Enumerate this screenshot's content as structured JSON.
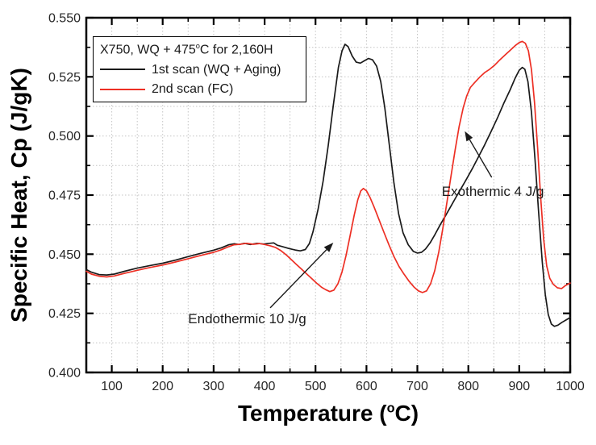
{
  "figure": {
    "x_title_pre": "Temperature (",
    "x_title_sup": "o",
    "x_title_post": "C)",
    "y_title": "Specific Heat, Cp (J/gK)"
  },
  "legend": {
    "title_pre": "X750, WQ + 475",
    "title_sup": "o",
    "title_post": "C for 2,160H"
  },
  "chart_data": {
    "type": "line",
    "title": "X750, WQ + 475°C for 2,160H",
    "xlabel": "Temperature (°C)",
    "ylabel": "Specific Heat, Cp (J/gK)",
    "xlim": [
      50,
      1000
    ],
    "ylim": [
      0.4,
      0.55
    ],
    "x_major_ticks": [
      100,
      200,
      300,
      400,
      500,
      600,
      700,
      800,
      900,
      1000
    ],
    "x_minor_step": 50,
    "y_major_ticks": [
      0.4,
      0.425,
      0.45,
      0.475,
      0.5,
      0.525,
      0.55
    ],
    "y_minor_step": 0.0125,
    "grid": "dotted at all major and minor tick positions",
    "legend_position": "top-left inside frame",
    "frame_color": "#000000",
    "grid_color": "#c4c4c4",
    "series": [
      {
        "name": "1st scan (WQ + Aging)",
        "color": "#1a1a1a",
        "points": [
          [
            50,
            0.4435
          ],
          [
            60,
            0.4424
          ],
          [
            75,
            0.4414
          ],
          [
            90,
            0.4412
          ],
          [
            105,
            0.4416
          ],
          [
            125,
            0.4428
          ],
          [
            150,
            0.4441
          ],
          [
            175,
            0.4452
          ],
          [
            200,
            0.4462
          ],
          [
            225,
            0.4475
          ],
          [
            250,
            0.449
          ],
          [
            275,
            0.4504
          ],
          [
            300,
            0.4517
          ],
          [
            315,
            0.4527
          ],
          [
            330,
            0.454
          ],
          [
            340,
            0.4544
          ],
          [
            350,
            0.4541
          ],
          [
            360,
            0.4546
          ],
          [
            372,
            0.4541
          ],
          [
            385,
            0.4546
          ],
          [
            398,
            0.4543
          ],
          [
            410,
            0.4546
          ],
          [
            418,
            0.4548
          ],
          [
            425,
            0.4538
          ],
          [
            435,
            0.4532
          ],
          [
            448,
            0.4524
          ],
          [
            460,
            0.4518
          ],
          [
            470,
            0.4514
          ],
          [
            480,
            0.452
          ],
          [
            488,
            0.4545
          ],
          [
            495,
            0.4595
          ],
          [
            505,
            0.469
          ],
          [
            515,
            0.481
          ],
          [
            525,
            0.496
          ],
          [
            535,
            0.513
          ],
          [
            545,
            0.529
          ],
          [
            552,
            0.536
          ],
          [
            558,
            0.5388
          ],
          [
            564,
            0.5378
          ],
          [
            572,
            0.5338
          ],
          [
            580,
            0.5312
          ],
          [
            588,
            0.5308
          ],
          [
            596,
            0.5318
          ],
          [
            604,
            0.5328
          ],
          [
            612,
            0.5322
          ],
          [
            620,
            0.5295
          ],
          [
            628,
            0.523
          ],
          [
            636,
            0.512
          ],
          [
            645,
            0.496
          ],
          [
            654,
            0.48
          ],
          [
            663,
            0.4672
          ],
          [
            672,
            0.459
          ],
          [
            682,
            0.454
          ],
          [
            692,
            0.4512
          ],
          [
            700,
            0.4505
          ],
          [
            708,
            0.4508
          ],
          [
            716,
            0.4522
          ],
          [
            725,
            0.4548
          ],
          [
            735,
            0.4585
          ],
          [
            745,
            0.4625
          ],
          [
            755,
            0.4662
          ],
          [
            765,
            0.47
          ],
          [
            775,
            0.4738
          ],
          [
            785,
            0.4775
          ],
          [
            795,
            0.4812
          ],
          [
            808,
            0.4862
          ],
          [
            820,
            0.4912
          ],
          [
            832,
            0.4962
          ],
          [
            845,
            0.502
          ],
          [
            858,
            0.508
          ],
          [
            870,
            0.514
          ],
          [
            882,
            0.5195
          ],
          [
            892,
            0.5245
          ],
          [
            900,
            0.5278
          ],
          [
            906,
            0.529
          ],
          [
            911,
            0.5282
          ],
          [
            917,
            0.523
          ],
          [
            924,
            0.51
          ],
          [
            931,
            0.49
          ],
          [
            938,
            0.468
          ],
          [
            945,
            0.447
          ],
          [
            951,
            0.433
          ],
          [
            957,
            0.4245
          ],
          [
            963,
            0.4205
          ],
          [
            969,
            0.4195
          ],
          [
            976,
            0.42
          ],
          [
            984,
            0.4212
          ],
          [
            992,
            0.4222
          ],
          [
            1000,
            0.4232
          ]
        ]
      },
      {
        "name": "2nd scan (FC)",
        "color": "#ed2f24",
        "points": [
          [
            50,
            0.4428
          ],
          [
            60,
            0.4416
          ],
          [
            75,
            0.4407
          ],
          [
            90,
            0.4404
          ],
          [
            105,
            0.4408
          ],
          [
            125,
            0.4419
          ],
          [
            150,
            0.4432
          ],
          [
            175,
            0.4444
          ],
          [
            200,
            0.4454
          ],
          [
            225,
            0.4467
          ],
          [
            250,
            0.4481
          ],
          [
            275,
            0.4495
          ],
          [
            300,
            0.4508
          ],
          [
            315,
            0.4519
          ],
          [
            330,
            0.4532
          ],
          [
            340,
            0.454
          ],
          [
            352,
            0.4542
          ],
          [
            365,
            0.4546
          ],
          [
            378,
            0.4542
          ],
          [
            390,
            0.4545
          ],
          [
            402,
            0.454
          ],
          [
            412,
            0.4535
          ],
          [
            422,
            0.4528
          ],
          [
            432,
            0.4515
          ],
          [
            442,
            0.4498
          ],
          [
            452,
            0.4478
          ],
          [
            462,
            0.4458
          ],
          [
            472,
            0.4438
          ],
          [
            482,
            0.4418
          ],
          [
            492,
            0.4398
          ],
          [
            502,
            0.4378
          ],
          [
            512,
            0.436
          ],
          [
            520,
            0.435
          ],
          [
            528,
            0.4342
          ],
          [
            536,
            0.4348
          ],
          [
            544,
            0.4375
          ],
          [
            552,
            0.4425
          ],
          [
            560,
            0.4495
          ],
          [
            568,
            0.458
          ],
          [
            576,
            0.4665
          ],
          [
            583,
            0.473
          ],
          [
            589,
            0.4768
          ],
          [
            594,
            0.4778
          ],
          [
            600,
            0.4768
          ],
          [
            607,
            0.474
          ],
          [
            615,
            0.47
          ],
          [
            624,
            0.465
          ],
          [
            634,
            0.4595
          ],
          [
            644,
            0.454
          ],
          [
            654,
            0.449
          ],
          [
            664,
            0.4448
          ],
          [
            674,
            0.4415
          ],
          [
            684,
            0.4385
          ],
          [
            694,
            0.436
          ],
          [
            702,
            0.4345
          ],
          [
            710,
            0.4338
          ],
          [
            718,
            0.4345
          ],
          [
            726,
            0.4375
          ],
          [
            734,
            0.443
          ],
          [
            742,
            0.451
          ],
          [
            750,
            0.461
          ],
          [
            758,
            0.472
          ],
          [
            766,
            0.483
          ],
          [
            774,
            0.494
          ],
          [
            782,
            0.504
          ],
          [
            790,
            0.512
          ],
          [
            797,
            0.517
          ],
          [
            804,
            0.5205
          ],
          [
            812,
            0.5225
          ],
          [
            822,
            0.5248
          ],
          [
            832,
            0.5268
          ],
          [
            842,
            0.5282
          ],
          [
            852,
            0.53
          ],
          [
            862,
            0.5322
          ],
          [
            872,
            0.5342
          ],
          [
            882,
            0.5362
          ],
          [
            892,
            0.5382
          ],
          [
            900,
            0.5395
          ],
          [
            906,
            0.54
          ],
          [
            912,
            0.5392
          ],
          [
            918,
            0.536
          ],
          [
            924,
            0.528
          ],
          [
            930,
            0.514
          ],
          [
            936,
            0.495
          ],
          [
            942,
            0.474
          ],
          [
            948,
            0.456
          ],
          [
            954,
            0.445
          ],
          [
            960,
            0.4398
          ],
          [
            967,
            0.4372
          ],
          [
            975,
            0.4358
          ],
          [
            983,
            0.4355
          ],
          [
            991,
            0.4368
          ],
          [
            1000,
            0.4378
          ]
        ]
      }
    ],
    "annotations": [
      {
        "text": "Endothermic 10 J/g",
        "text_x": 250,
        "text_y": 0.4225,
        "arrow_from": [
          411,
          0.4273
        ],
        "arrow_to": [
          535,
          0.4549
        ]
      },
      {
        "text": "Exothermic 4 J/g",
        "text_x": 748,
        "text_y": 0.4765,
        "arrow_from": [
          846,
          0.4825
        ],
        "arrow_to": [
          793,
          0.502
        ]
      }
    ]
  }
}
